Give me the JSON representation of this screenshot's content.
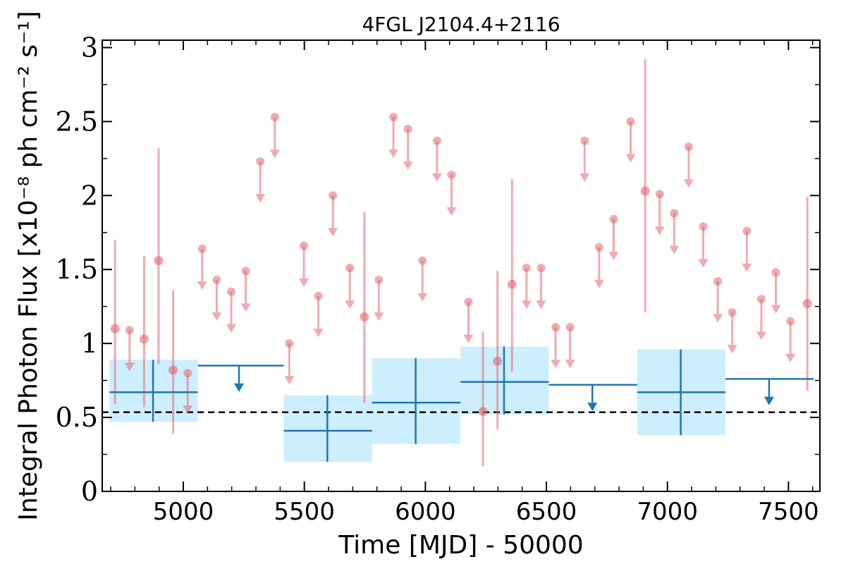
{
  "chart_data": {
    "type": "scatter",
    "title": "4FGL J2104.4+2116",
    "xlabel": "Time [MJD] - 50000",
    "ylabel": "Integral Photon Flux [x10⁻⁸ ph cm⁻² s⁻¹]",
    "xlim": [
      4665,
      7630
    ],
    "ylim": [
      0,
      3.05
    ],
    "xticks": [
      "5000",
      "5500",
      "6000",
      "6500",
      "7000",
      "7500"
    ],
    "xtick_values": [
      5000,
      5500,
      6000,
      6500,
      7000,
      7500
    ],
    "yticks": [
      "0",
      "0.5",
      "1",
      "1.5",
      "2",
      "2.5",
      "3"
    ],
    "ytick_values": [
      0,
      0.5,
      1,
      1.5,
      2,
      2.5,
      3
    ],
    "reference_line": {
      "y": 0.535,
      "style": "dashed",
      "color": "#000000"
    },
    "colors": {
      "short_bins": "#e06870",
      "long_bins": "#1f77b4",
      "long_bins_band": "#cdeefc"
    },
    "series": [
      {
        "bin": "short",
        "detections": [
          {
            "x": 4718,
            "y": 1.1,
            "ylo": 0.59,
            "yhi": 1.7
          },
          {
            "x": 4838,
            "y": 1.03,
            "ylo": 0.57,
            "yhi": 1.59
          },
          {
            "x": 4898,
            "y": 1.56,
            "ylo": 0.86,
            "yhi": 2.32
          },
          {
            "x": 4958,
            "y": 0.82,
            "ylo": 0.39,
            "yhi": 1.36
          },
          {
            "x": 5748,
            "y": 1.18,
            "ylo": 0.6,
            "yhi": 1.89
          },
          {
            "x": 6238,
            "y": 0.54,
            "ylo": 0.17,
            "yhi": 1.08
          },
          {
            "x": 6298,
            "y": 0.88,
            "ylo": 0.42,
            "yhi": 1.49
          },
          {
            "x": 6358,
            "y": 1.4,
            "ylo": 0.81,
            "yhi": 2.11
          },
          {
            "x": 6908,
            "y": 2.03,
            "ylo": 1.21,
            "yhi": 2.92
          },
          {
            "x": 7578,
            "y": 1.27,
            "ylo": 0.68,
            "yhi": 1.99
          }
        ],
        "upper_limits": [
          {
            "x": 4778,
            "y": 1.09
          },
          {
            "x": 5018,
            "y": 0.8
          },
          {
            "x": 5078,
            "y": 1.64
          },
          {
            "x": 5138,
            "y": 1.43
          },
          {
            "x": 5198,
            "y": 1.35
          },
          {
            "x": 5258,
            "y": 1.49
          },
          {
            "x": 5318,
            "y": 2.23
          },
          {
            "x": 5378,
            "y": 2.53
          },
          {
            "x": 5438,
            "y": 1.0
          },
          {
            "x": 5498,
            "y": 1.66
          },
          {
            "x": 5558,
            "y": 1.32
          },
          {
            "x": 5618,
            "y": 2.0
          },
          {
            "x": 5688,
            "y": 1.51
          },
          {
            "x": 5808,
            "y": 1.43
          },
          {
            "x": 5868,
            "y": 2.53
          },
          {
            "x": 5928,
            "y": 2.45
          },
          {
            "x": 5988,
            "y": 1.56
          },
          {
            "x": 6048,
            "y": 2.37
          },
          {
            "x": 6108,
            "y": 2.14
          },
          {
            "x": 6178,
            "y": 1.28
          },
          {
            "x": 6418,
            "y": 1.51
          },
          {
            "x": 6478,
            "y": 1.51
          },
          {
            "x": 6538,
            "y": 1.11
          },
          {
            "x": 6598,
            "y": 1.11
          },
          {
            "x": 6658,
            "y": 2.37
          },
          {
            "x": 6718,
            "y": 1.65
          },
          {
            "x": 6778,
            "y": 1.84
          },
          {
            "x": 6848,
            "y": 2.5
          },
          {
            "x": 6968,
            "y": 2.01
          },
          {
            "x": 7028,
            "y": 1.88
          },
          {
            "x": 7088,
            "y": 2.33
          },
          {
            "x": 7148,
            "y": 1.79
          },
          {
            "x": 7208,
            "y": 1.42
          },
          {
            "x": 7268,
            "y": 1.21
          },
          {
            "x": 7328,
            "y": 1.76
          },
          {
            "x": 7388,
            "y": 1.3
          },
          {
            "x": 7448,
            "y": 1.48
          },
          {
            "x": 7508,
            "y": 1.15
          }
        ]
      },
      {
        "bin": "long",
        "detections": [
          {
            "x0": 4695,
            "x1": 5060,
            "xc": 4875,
            "y": 0.67,
            "ylo": 0.47,
            "yhi": 0.89
          },
          {
            "x0": 5415,
            "x1": 5780,
            "xc": 5595,
            "y": 0.41,
            "ylo": 0.2,
            "yhi": 0.65
          },
          {
            "x0": 5780,
            "x1": 6145,
            "xc": 5960,
            "y": 0.6,
            "ylo": 0.32,
            "yhi": 0.9
          },
          {
            "x0": 6145,
            "x1": 6510,
            "xc": 6325,
            "y": 0.74,
            "ylo": 0.52,
            "yhi": 0.98
          },
          {
            "x0": 6875,
            "x1": 7240,
            "xc": 7055,
            "y": 0.67,
            "ylo": 0.38,
            "yhi": 0.96
          }
        ],
        "upper_limits": [
          {
            "x0": 5060,
            "x1": 5415,
            "xc": 5230,
            "y": 0.85
          },
          {
            "x0": 6510,
            "x1": 6875,
            "xc": 6690,
            "y": 0.72
          },
          {
            "x0": 7240,
            "x1": 7605,
            "xc": 7420,
            "y": 0.76
          }
        ]
      }
    ]
  }
}
